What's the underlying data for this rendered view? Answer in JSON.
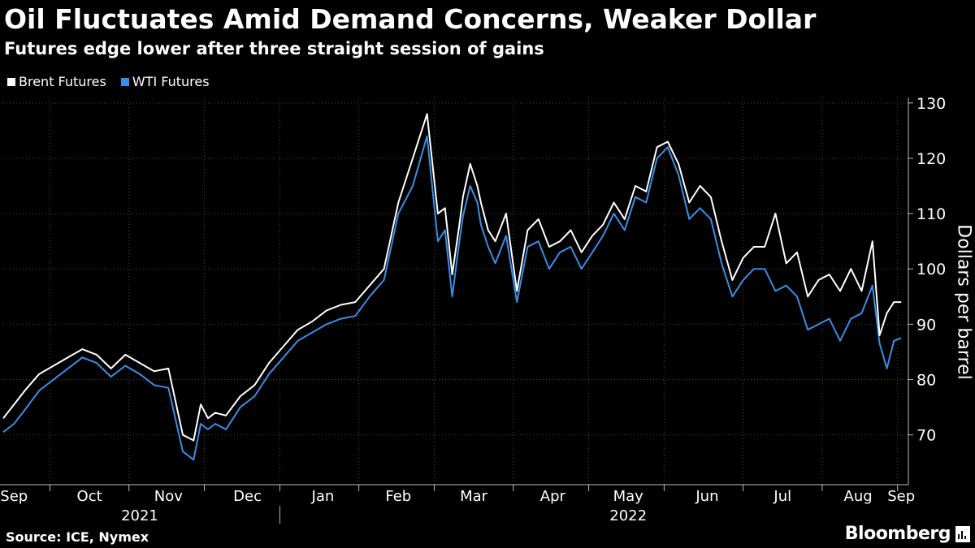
{
  "header": {
    "title": "Oil Fluctuates Amid Demand Concerns, Weaker Dollar",
    "subtitle": "Futures edge lower after three straight session of gains"
  },
  "footer": {
    "source": "Source: ICE, Nymex",
    "brand": "Bloomberg"
  },
  "chart_data": {
    "type": "line",
    "title": "Oil Fluctuates Amid Demand Concerns, Weaker Dollar",
    "subtitle": "Futures edge lower after three straight session of gains",
    "ylabel": "Dollars per barrel",
    "ylim": [
      61,
      131
    ],
    "yticks": [
      70,
      80,
      90,
      100,
      110,
      120,
      130
    ],
    "grid": true,
    "legend_position": "top-left",
    "x_range": [
      0,
      252
    ],
    "month_labels": [
      {
        "label": "Sep",
        "t": 3
      },
      {
        "label": "Oct",
        "t": 24
      },
      {
        "label": "Nov",
        "t": 46
      },
      {
        "label": "Dec",
        "t": 68
      },
      {
        "label": "Jan",
        "t": 89
      },
      {
        "label": "Feb",
        "t": 110
      },
      {
        "label": "Mar",
        "t": 131
      },
      {
        "label": "Apr",
        "t": 153
      },
      {
        "label": "May",
        "t": 174
      },
      {
        "label": "Jun",
        "t": 196
      },
      {
        "label": "Jul",
        "t": 217
      },
      {
        "label": "Aug",
        "t": 238
      },
      {
        "label": "Sep",
        "t": 250
      }
    ],
    "month_boundaries": [
      13,
      35,
      56,
      77,
      99,
      120,
      142,
      163,
      184,
      206,
      228,
      249
    ],
    "years": [
      {
        "label": "2021",
        "t": 38
      },
      {
        "label": "2022",
        "t": 174
      }
    ],
    "year_divider_t": 77,
    "series": [
      {
        "name": "Brent Futures",
        "color": "#ffffff",
        "t": [
          0,
          3,
          6,
          10,
          14,
          18,
          22,
          26,
          30,
          34,
          38,
          42,
          46,
          50,
          53,
          55,
          57,
          59,
          62,
          66,
          70,
          74,
          78,
          82,
          86,
          90,
          94,
          98,
          102,
          106,
          110,
          114,
          118,
          121,
          123,
          125,
          127,
          128,
          130,
          132,
          133,
          135,
          137,
          140,
          143,
          146,
          149,
          152,
          155,
          158,
          161,
          164,
          167,
          170,
          173,
          176,
          179,
          182,
          185,
          188,
          191,
          194,
          197,
          200,
          203,
          206,
          209,
          212,
          215,
          218,
          221,
          224,
          227,
          230,
          233,
          236,
          239,
          242,
          244,
          246,
          248,
          250
        ],
        "values": [
          73,
          75.5,
          78,
          81,
          82.5,
          84,
          85.5,
          84.5,
          82,
          84.5,
          83,
          81.5,
          82,
          70,
          69,
          75.5,
          73,
          74,
          73.5,
          77,
          79,
          83,
          86,
          89,
          90.5,
          92.5,
          93.5,
          94,
          97,
          100,
          112,
          120,
          128,
          110,
          111,
          99,
          108,
          113,
          119,
          115,
          112,
          107,
          105,
          110,
          96,
          107,
          109,
          104,
          105,
          107,
          103,
          106,
          108,
          112,
          109,
          115,
          114,
          122,
          123,
          119,
          112,
          115,
          113,
          105,
          98,
          102,
          104,
          104,
          110,
          101,
          103,
          95,
          98,
          99,
          96,
          100,
          96,
          105,
          88,
          92,
          94,
          94
        ]
      },
      {
        "name": "WTI Futures",
        "color": "#3a8ee8",
        "t": [
          0,
          3,
          6,
          10,
          14,
          18,
          22,
          26,
          30,
          34,
          38,
          42,
          46,
          50,
          53,
          55,
          57,
          59,
          62,
          66,
          70,
          74,
          78,
          82,
          86,
          90,
          94,
          98,
          102,
          106,
          110,
          114,
          118,
          121,
          123,
          125,
          127,
          128,
          130,
          132,
          133,
          135,
          137,
          140,
          143,
          146,
          149,
          152,
          155,
          158,
          161,
          164,
          167,
          170,
          173,
          176,
          179,
          182,
          185,
          188,
          191,
          194,
          197,
          200,
          203,
          206,
          209,
          212,
          215,
          218,
          221,
          224,
          227,
          230,
          233,
          236,
          239,
          242,
          244,
          246,
          248,
          250
        ],
        "values": [
          70.5,
          72,
          74.5,
          78,
          80,
          82,
          84,
          83,
          80.5,
          82.5,
          81,
          79,
          78.5,
          67,
          65.5,
          72,
          71,
          72,
          71,
          75,
          77,
          81,
          84,
          87,
          88.5,
          90,
          91,
          91.5,
          95,
          98,
          110,
          115,
          124,
          105,
          107,
          95,
          105,
          109.5,
          115,
          112,
          108,
          104,
          101,
          106,
          94,
          104,
          105,
          100,
          103,
          104,
          100,
          103,
          106,
          110,
          107,
          113,
          112,
          120,
          122,
          117,
          109,
          111,
          109,
          101,
          95,
          98,
          100,
          100,
          96,
          97,
          95,
          89,
          90,
          91,
          87,
          91,
          92,
          97,
          86.5,
          82,
          87,
          87.5
        ]
      }
    ]
  }
}
